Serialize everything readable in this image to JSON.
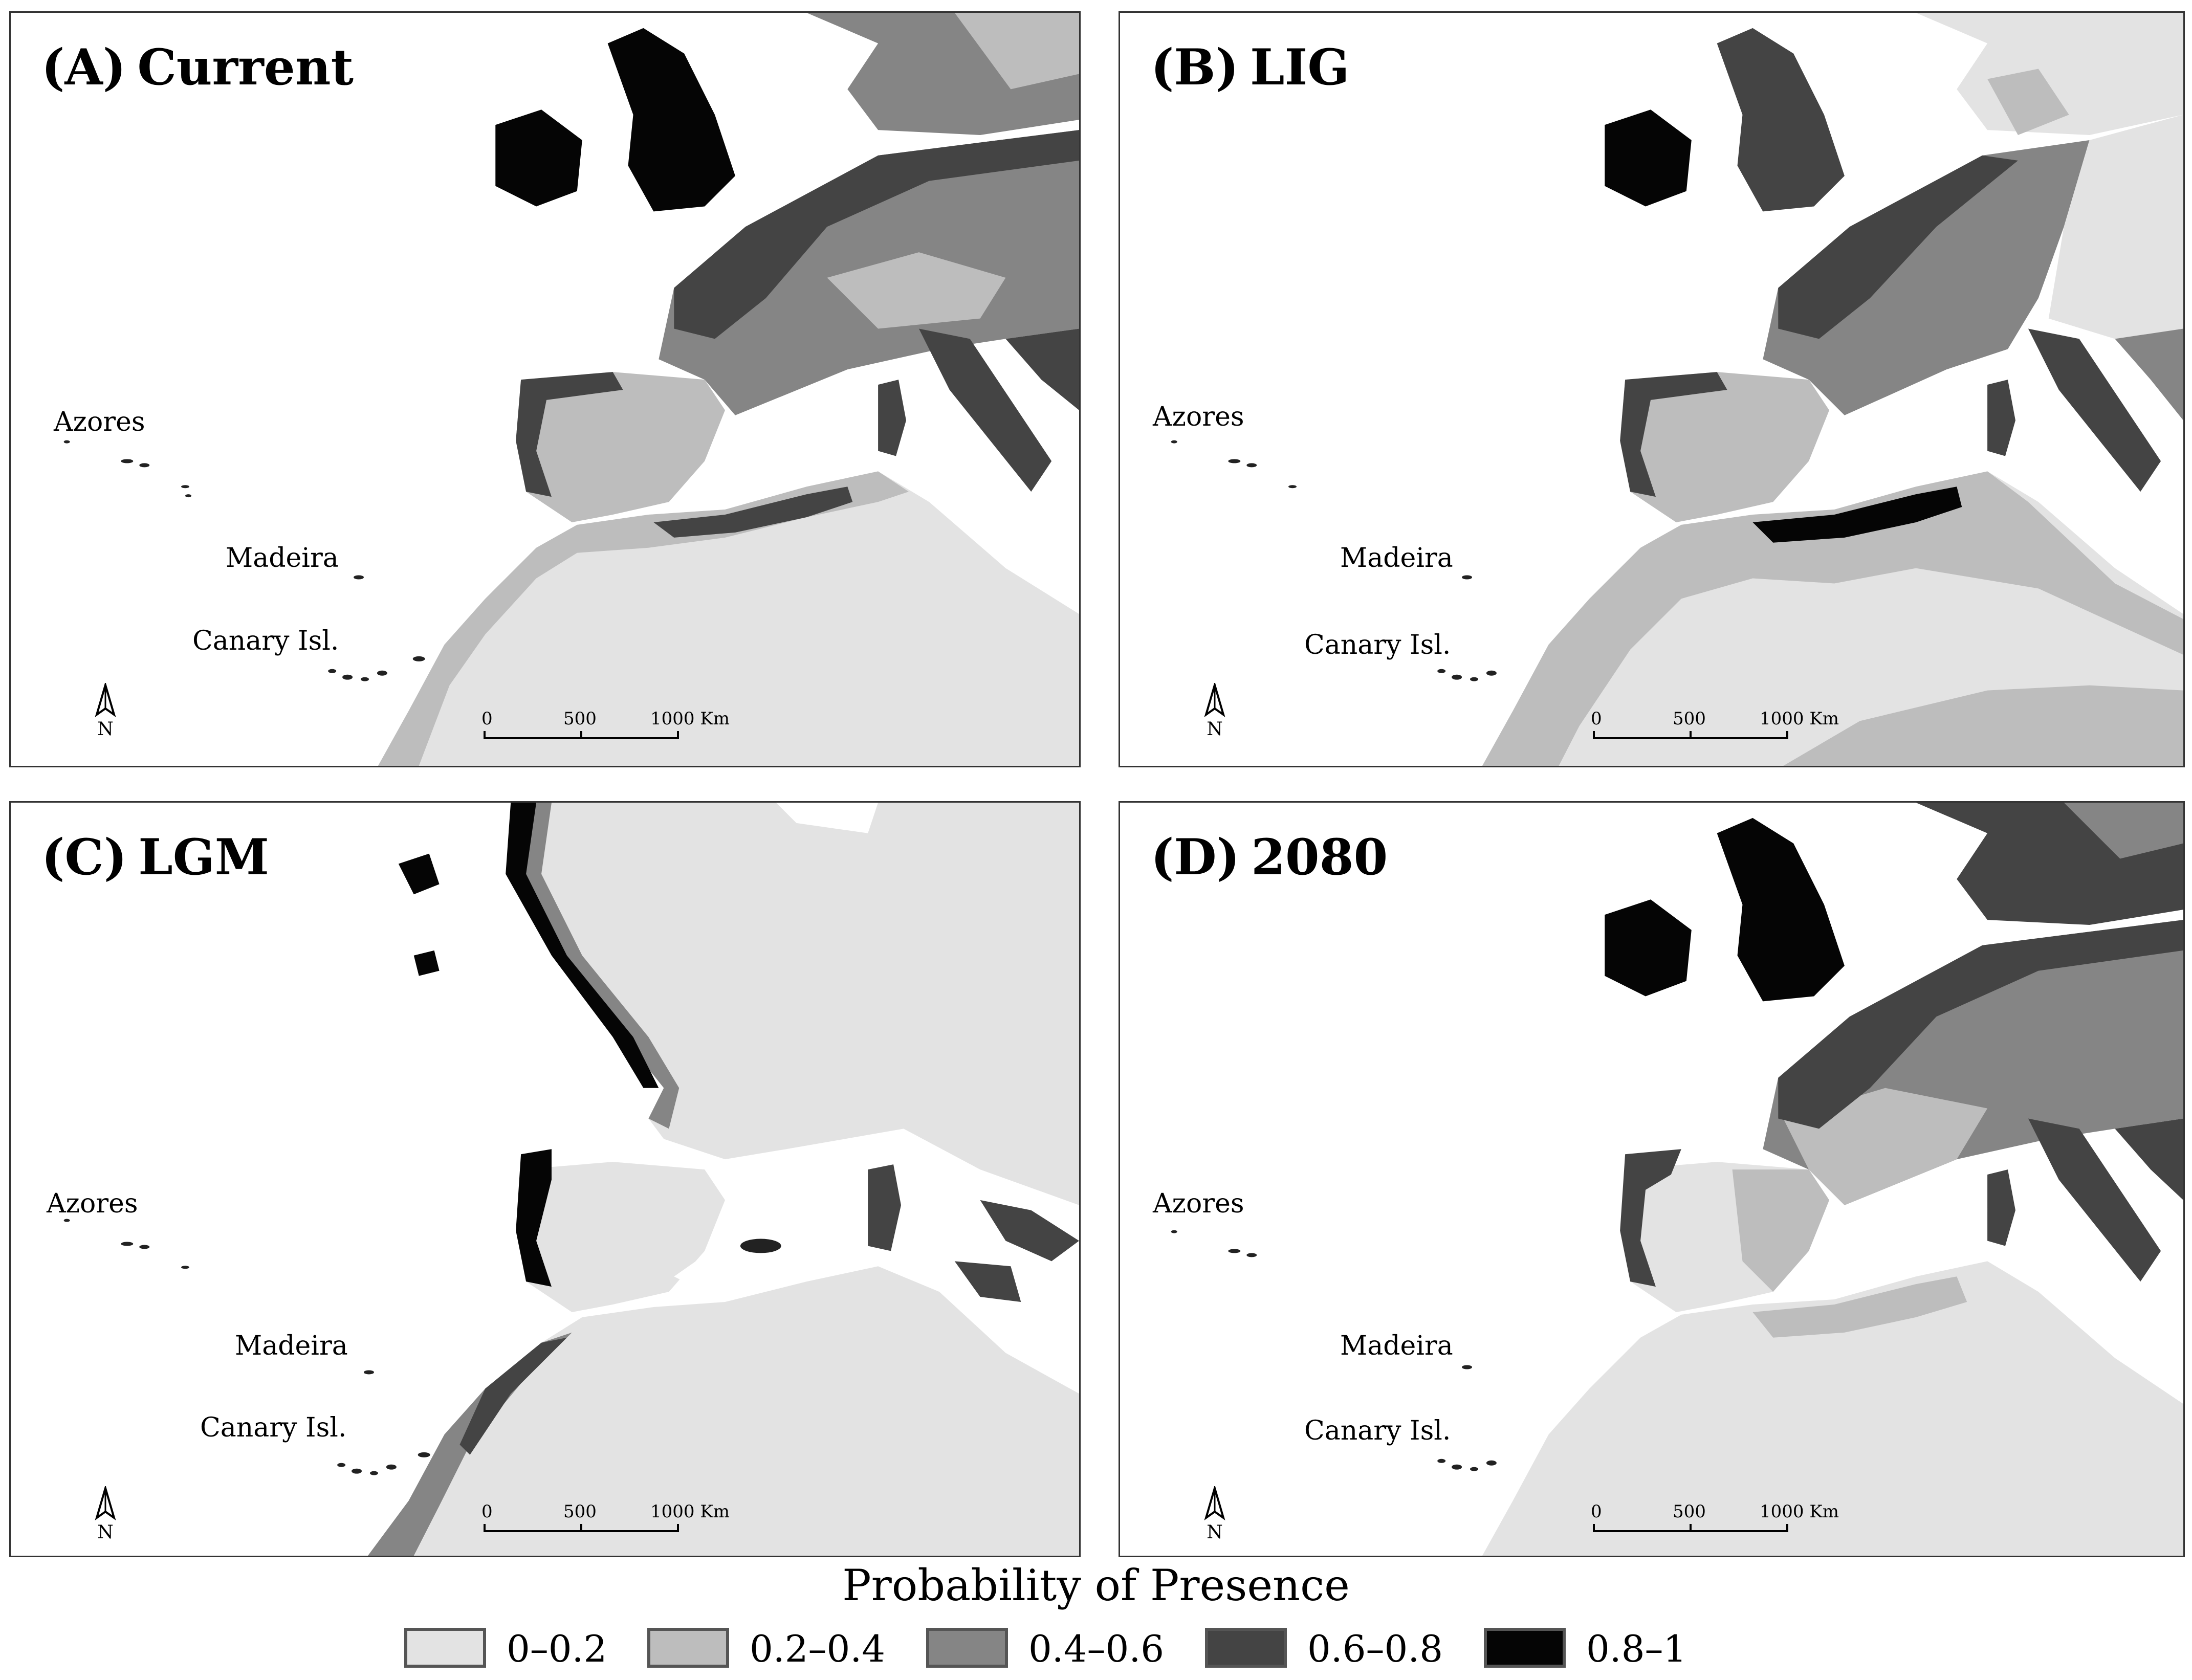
{
  "panels": [
    {
      "letter": "(A)",
      "name": "Current"
    },
    {
      "letter": "(B)",
      "name": "LIG"
    },
    {
      "letter": "(C)",
      "name": "LGM"
    },
    {
      "letter": "(D)",
      "name": "2080"
    }
  ],
  "places": {
    "azores": "Azores",
    "madeira": "Madeira",
    "canary": "Canary Isl."
  },
  "north_label": "N",
  "scale": {
    "t0": "0",
    "t1": "500",
    "t2": "1000 Km"
  },
  "legend": {
    "title": "Probability of Presence",
    "classes": [
      {
        "label": "0–0.2",
        "color": "#e3e3e3"
      },
      {
        "label": "0.2–0.4",
        "color": "#bdbdbd"
      },
      {
        "label": "0.4–0.6",
        "color": "#858585"
      },
      {
        "label": "0.6–0.8",
        "color": "#444444"
      },
      {
        "label": "0.8–1",
        "color": "#050505"
      }
    ]
  }
}
